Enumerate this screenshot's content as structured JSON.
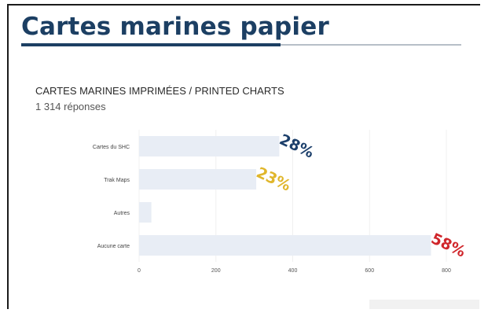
{
  "slide": {
    "title": "Cartes marines papier"
  },
  "chart_data": {
    "type": "bar",
    "orientation": "horizontal",
    "title": "CARTES MARINES IMPRIMÉES / PRINTED CHARTS",
    "subtitle": "1 314 réponses",
    "categories": [
      "Cartes du SHC",
      "Trak Maps",
      "Autres",
      "Aucune carte"
    ],
    "values": [
      365,
      305,
      32,
      760
    ],
    "percent_labels": [
      "28%",
      "23%",
      "",
      "58%"
    ],
    "label_colors": [
      "#1c3f6b",
      "#e0b62b",
      "",
      "#d0262b"
    ],
    "bar_color": "#e8edf5",
    "xlim": [
      0,
      800
    ],
    "xticks": [
      0,
      200,
      400,
      600,
      800
    ],
    "grid": true
  }
}
